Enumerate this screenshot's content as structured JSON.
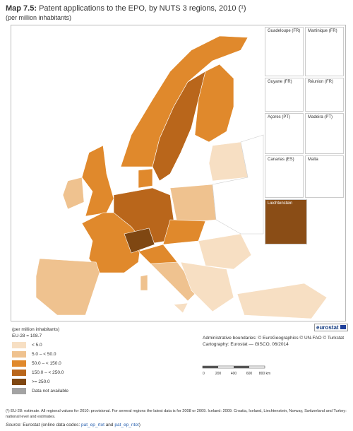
{
  "header": {
    "label": "Map 7.5:",
    "title": "Patent applications to the EPO, by NUTS 3 regions, 2010 (¹)",
    "subtitle": "(per million inhabitants)"
  },
  "insets": [
    "Guadeloupe (FR)",
    "Martinique (FR)",
    "Guyane (FR)",
    "Réunion (FR)",
    "Açores (PT)",
    "Madeira (PT)",
    "Canarias (ES)",
    "Malta",
    "Liechtenstein"
  ],
  "legend": {
    "unit": "(per million inhabitants)",
    "eu_average": "EU-28 = 108.7",
    "items": [
      {
        "label": "< 5.0",
        "color": "#f7dfc3"
      },
      {
        "label": "5.0 – < 50.0",
        "color": "#efc28f"
      },
      {
        "label": "50.0 – < 150.0",
        "color": "#e0892c"
      },
      {
        "label": "150.0 – < 250.0",
        "color": "#b9661b"
      },
      {
        "label": ">= 250.0",
        "color": "#7f4712"
      },
      {
        "label": "Data not available",
        "color": "#a3a3a3"
      }
    ]
  },
  "credits": [
    "Administrative boundaries: © EuroGeographics © UN-FAO © Turkstat",
    "Cartography: Eurostat — GISCO, 06/2014"
  ],
  "scale_bar": {
    "labels": [
      "0",
      "200",
      "400",
      "600",
      "800 km"
    ]
  },
  "logo": "eurostat",
  "footnote": "(¹) EU-28: estimate. All regional values for 2010: provisional. For several regions the latest data is for 2008 or 2009. Iceland: 2009. Croatia, Iceland, Liechtenstein, Norway, Switzerland and Turkey: national level and estimates.",
  "source": {
    "prefix": "Source:",
    "text": "Eurostat (online data codes:",
    "code1": "pat_ep_rtot",
    "and": "and",
    "code2": "pat_ep_ntot",
    "close": ")"
  }
}
